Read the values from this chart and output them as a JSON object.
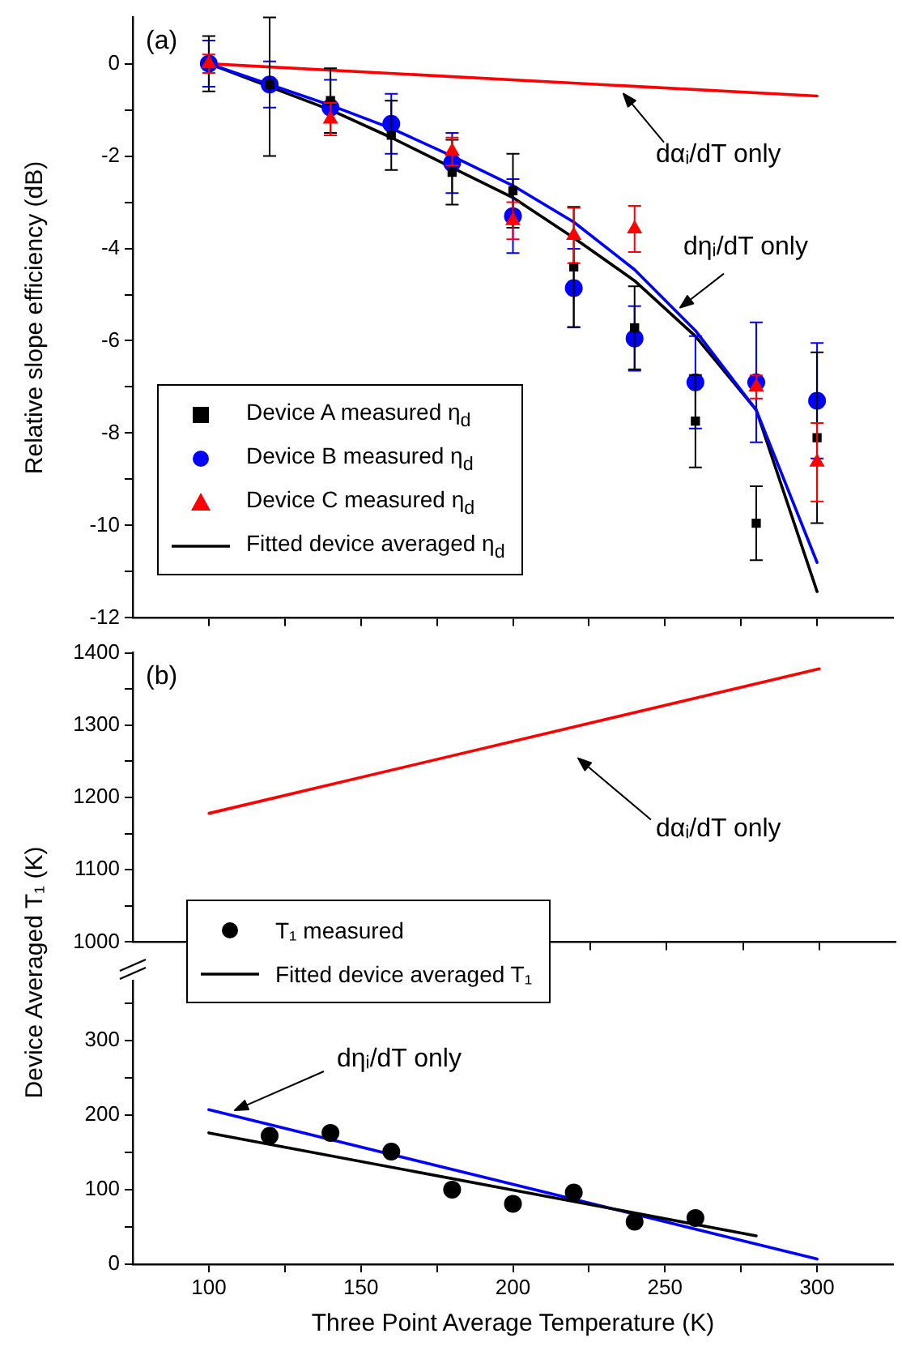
{
  "chart_data": [
    {
      "type": "scatter",
      "ylabel": "Relative slope efficiency (dB)",
      "xlim": [
        75,
        325
      ],
      "xticks": [
        100,
        {
          "value": 125,
          "label": null
        },
        150,
        {
          "value": 175,
          "label": null
        },
        200,
        {
          "value": 225,
          "label": null
        },
        250,
        {
          "value": 275,
          "label": null
        },
        300
      ],
      "ylim": [
        -12,
        1
      ],
      "yticks": [
        -12,
        {
          "value": -11,
          "label": null
        },
        -10,
        {
          "value": -9,
          "label": null
        },
        -8,
        {
          "value": -7,
          "label": null
        },
        -6,
        {
          "value": -5,
          "label": null
        },
        -4,
        {
          "value": -3,
          "label": null
        },
        -2,
        {
          "value": -1,
          "label": null
        },
        0
      ],
      "tick_labels": "y",
      "legend": "bottom left",
      "x": [
        100,
        120,
        140,
        160,
        180,
        200,
        220,
        240,
        260,
        280,
        300
      ],
      "annotations": [
        "(a)",
        "dαᵢ/dT only",
        "dηᵢ/dT only"
      ],
      "series": [
        {
          "name": "Device A measured η$_{d}$",
          "color": "#000000",
          "marker": "square",
          "values": [
            0,
            -0.45,
            -0.8,
            -1.55,
            -2.35,
            -2.75,
            -4.4,
            -5.72,
            -7.74,
            -9.95,
            -8.1
          ],
          "errors": [
            0.6,
            [
              -2.0,
              1.0
            ],
            0.7,
            0.75,
            0.7,
            0.8,
            1.3,
            0.9,
            1.0,
            0.8,
            1.85
          ]
        },
        {
          "name": "Device B measured η$_{d}$",
          "color": "#0000ff",
          "marker": "circle",
          "values": [
            0,
            -0.45,
            -0.95,
            -1.3,
            -2.15,
            -3.3,
            -4.86,
            -5.95,
            -6.9,
            -6.9,
            -7.3
          ],
          "errors": [
            0.5,
            0.5,
            0.6,
            0.65,
            0.65,
            0.8,
            0.85,
            0.7,
            1.0,
            1.3,
            1.25
          ]
        },
        {
          "name": "Device C measured η$_{d}$",
          "color": "#ff0000",
          "marker": "triangle",
          "values": [
            0,
            null,
            -1.2,
            null,
            -1.9,
            -3.4,
            -3.72,
            -3.58,
            null,
            -7.0,
            -8.63
          ],
          "errors": [
            0.2,
            null,
            0.35,
            null,
            0.3,
            0.4,
            0.6,
            0.5,
            null,
            0.25,
            0.85
          ]
        },
        {
          "type": "line",
          "color": "#ff0000",
          "x": [
            100,
            300
          ],
          "values": [
            0,
            -0.7
          ]
        },
        {
          "type": "line",
          "color": "#0000ff",
          "values": [
            0,
            -0.45,
            -0.9,
            -1.4,
            -2.0,
            -2.64,
            -3.43,
            -4.46,
            -5.78,
            -7.5,
            -10.8
          ]
        },
        {
          "name": "Fitted device averaged η$_{d}$",
          "type": "line",
          "color": "#000000",
          "values": [
            0,
            -0.5,
            -1.0,
            -1.6,
            -2.25,
            -2.9,
            -3.77,
            -4.7,
            -5.9,
            -7.5,
            -11.43
          ]
        }
      ]
    },
    {
      "type": "line",
      "xlim": [
        75,
        325
      ],
      "xticks": [
        100,
        {
          "value": 125,
          "label": null
        },
        150,
        {
          "value": 175,
          "label": null
        },
        200,
        {
          "value": 225,
          "label": null
        },
        250,
        {
          "value": 275,
          "label": null
        },
        300
      ],
      "ylim": [
        1000,
        1400
      ],
      "yticks": [
        1000,
        {
          "value": 1050,
          "label": null
        },
        1100,
        {
          "value": 1150,
          "label": null
        },
        1200,
        {
          "value": 1250,
          "label": null
        },
        1300,
        {
          "value": 1350,
          "label": null
        },
        1400
      ],
      "tick_labels": "y",
      "annotations": [
        "(b)",
        "dαᵢ/dT only"
      ],
      "series": [
        {
          "color": "#ff0000",
          "x": [
            100,
            300
          ],
          "values": [
            1178,
            1378
          ]
        }
      ]
    },
    {
      "type": "scatter",
      "xlabel": "Three Point Average Temperature (K)",
      "ylabel": "Device Averaged T₁ (K)",
      "xlim": [
        75,
        325
      ],
      "xticks": [
        100,
        {
          "value": 125,
          "label": null
        },
        150,
        {
          "value": 175,
          "label": null
        },
        200,
        {
          "value": 225,
          "label": null
        },
        250,
        {
          "value": 275,
          "label": null
        },
        300
      ],
      "ylim": [
        0,
        380
      ],
      "yticks": [
        0,
        {
          "value": 50,
          "label": null
        },
        100,
        {
          "value": 150,
          "label": null
        },
        200,
        {
          "value": 250,
          "label": null
        },
        300,
        {
          "value": 350,
          "label": null
        }
      ],
      "legend": "top left",
      "annotations": [
        "dηᵢ/dT only"
      ],
      "series": [
        {
          "name": "T₁ measured",
          "color": "#000000",
          "marker": "circle",
          "x": [
            120,
            140,
            160,
            180,
            200,
            220,
            240,
            260
          ],
          "values": [
            172,
            176,
            151,
            100,
            81,
            96,
            57,
            62
          ]
        },
        {
          "name": "Fitted device averaged T₁",
          "type": "line",
          "color": "#000000",
          "x": [
            100,
            280
          ],
          "values": [
            176,
            38
          ]
        },
        {
          "type": "line",
          "color": "#0000ff",
          "x": [
            100,
            300
          ],
          "values": [
            207,
            7
          ]
        }
      ]
    }
  ]
}
